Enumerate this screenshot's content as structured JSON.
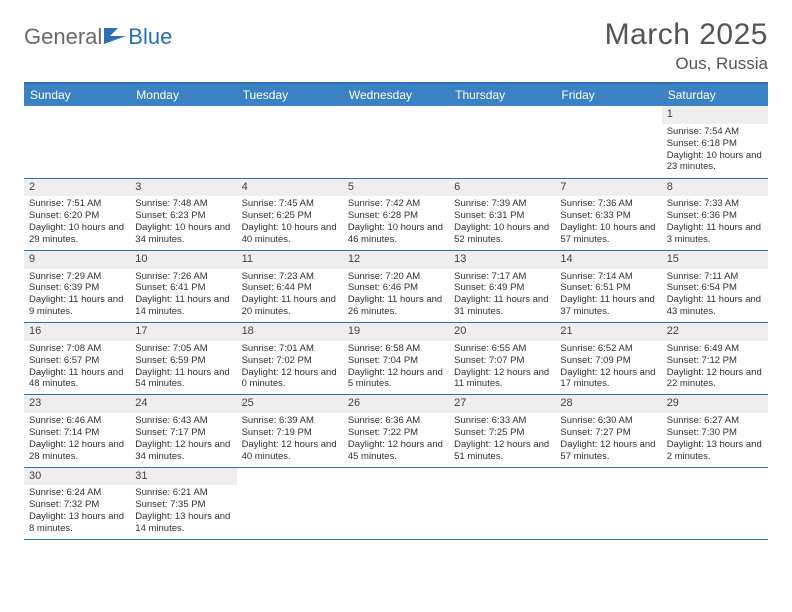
{
  "logo": {
    "general": "General",
    "blue": "Blue"
  },
  "title": "March 2025",
  "location": "Ous, Russia",
  "weekdays": [
    "Sunday",
    "Monday",
    "Tuesday",
    "Wednesday",
    "Thursday",
    "Friday",
    "Saturday"
  ],
  "colors": {
    "header_bg": "#3a82c4",
    "header_border": "#2a70b8",
    "cell_border": "#2a70b8",
    "daynum_bg": "#eeeeee",
    "text": "#333333",
    "title_text": "#555555"
  },
  "weeks": [
    [
      null,
      null,
      null,
      null,
      null,
      null,
      {
        "n": "1",
        "sr": "Sunrise: 7:54 AM",
        "ss": "Sunset: 6:18 PM",
        "dl": "Daylight: 10 hours and 23 minutes."
      }
    ],
    [
      {
        "n": "2",
        "sr": "Sunrise: 7:51 AM",
        "ss": "Sunset: 6:20 PM",
        "dl": "Daylight: 10 hours and 29 minutes."
      },
      {
        "n": "3",
        "sr": "Sunrise: 7:48 AM",
        "ss": "Sunset: 6:23 PM",
        "dl": "Daylight: 10 hours and 34 minutes."
      },
      {
        "n": "4",
        "sr": "Sunrise: 7:45 AM",
        "ss": "Sunset: 6:25 PM",
        "dl": "Daylight: 10 hours and 40 minutes."
      },
      {
        "n": "5",
        "sr": "Sunrise: 7:42 AM",
        "ss": "Sunset: 6:28 PM",
        "dl": "Daylight: 10 hours and 46 minutes."
      },
      {
        "n": "6",
        "sr": "Sunrise: 7:39 AM",
        "ss": "Sunset: 6:31 PM",
        "dl": "Daylight: 10 hours and 52 minutes."
      },
      {
        "n": "7",
        "sr": "Sunrise: 7:36 AM",
        "ss": "Sunset: 6:33 PM",
        "dl": "Daylight: 10 hours and 57 minutes."
      },
      {
        "n": "8",
        "sr": "Sunrise: 7:33 AM",
        "ss": "Sunset: 6:36 PM",
        "dl": "Daylight: 11 hours and 3 minutes."
      }
    ],
    [
      {
        "n": "9",
        "sr": "Sunrise: 7:29 AM",
        "ss": "Sunset: 6:39 PM",
        "dl": "Daylight: 11 hours and 9 minutes."
      },
      {
        "n": "10",
        "sr": "Sunrise: 7:26 AM",
        "ss": "Sunset: 6:41 PM",
        "dl": "Daylight: 11 hours and 14 minutes."
      },
      {
        "n": "11",
        "sr": "Sunrise: 7:23 AM",
        "ss": "Sunset: 6:44 PM",
        "dl": "Daylight: 11 hours and 20 minutes."
      },
      {
        "n": "12",
        "sr": "Sunrise: 7:20 AM",
        "ss": "Sunset: 6:46 PM",
        "dl": "Daylight: 11 hours and 26 minutes."
      },
      {
        "n": "13",
        "sr": "Sunrise: 7:17 AM",
        "ss": "Sunset: 6:49 PM",
        "dl": "Daylight: 11 hours and 31 minutes."
      },
      {
        "n": "14",
        "sr": "Sunrise: 7:14 AM",
        "ss": "Sunset: 6:51 PM",
        "dl": "Daylight: 11 hours and 37 minutes."
      },
      {
        "n": "15",
        "sr": "Sunrise: 7:11 AM",
        "ss": "Sunset: 6:54 PM",
        "dl": "Daylight: 11 hours and 43 minutes."
      }
    ],
    [
      {
        "n": "16",
        "sr": "Sunrise: 7:08 AM",
        "ss": "Sunset: 6:57 PM",
        "dl": "Daylight: 11 hours and 48 minutes."
      },
      {
        "n": "17",
        "sr": "Sunrise: 7:05 AM",
        "ss": "Sunset: 6:59 PM",
        "dl": "Daylight: 11 hours and 54 minutes."
      },
      {
        "n": "18",
        "sr": "Sunrise: 7:01 AM",
        "ss": "Sunset: 7:02 PM",
        "dl": "Daylight: 12 hours and 0 minutes."
      },
      {
        "n": "19",
        "sr": "Sunrise: 6:58 AM",
        "ss": "Sunset: 7:04 PM",
        "dl": "Daylight: 12 hours and 5 minutes."
      },
      {
        "n": "20",
        "sr": "Sunrise: 6:55 AM",
        "ss": "Sunset: 7:07 PM",
        "dl": "Daylight: 12 hours and 11 minutes."
      },
      {
        "n": "21",
        "sr": "Sunrise: 6:52 AM",
        "ss": "Sunset: 7:09 PM",
        "dl": "Daylight: 12 hours and 17 minutes."
      },
      {
        "n": "22",
        "sr": "Sunrise: 6:49 AM",
        "ss": "Sunset: 7:12 PM",
        "dl": "Daylight: 12 hours and 22 minutes."
      }
    ],
    [
      {
        "n": "23",
        "sr": "Sunrise: 6:46 AM",
        "ss": "Sunset: 7:14 PM",
        "dl": "Daylight: 12 hours and 28 minutes."
      },
      {
        "n": "24",
        "sr": "Sunrise: 6:43 AM",
        "ss": "Sunset: 7:17 PM",
        "dl": "Daylight: 12 hours and 34 minutes."
      },
      {
        "n": "25",
        "sr": "Sunrise: 6:39 AM",
        "ss": "Sunset: 7:19 PM",
        "dl": "Daylight: 12 hours and 40 minutes."
      },
      {
        "n": "26",
        "sr": "Sunrise: 6:36 AM",
        "ss": "Sunset: 7:22 PM",
        "dl": "Daylight: 12 hours and 45 minutes."
      },
      {
        "n": "27",
        "sr": "Sunrise: 6:33 AM",
        "ss": "Sunset: 7:25 PM",
        "dl": "Daylight: 12 hours and 51 minutes."
      },
      {
        "n": "28",
        "sr": "Sunrise: 6:30 AM",
        "ss": "Sunset: 7:27 PM",
        "dl": "Daylight: 12 hours and 57 minutes."
      },
      {
        "n": "29",
        "sr": "Sunrise: 6:27 AM",
        "ss": "Sunset: 7:30 PM",
        "dl": "Daylight: 13 hours and 2 minutes."
      }
    ],
    [
      {
        "n": "30",
        "sr": "Sunrise: 6:24 AM",
        "ss": "Sunset: 7:32 PM",
        "dl": "Daylight: 13 hours and 8 minutes."
      },
      {
        "n": "31",
        "sr": "Sunrise: 6:21 AM",
        "ss": "Sunset: 7:35 PM",
        "dl": "Daylight: 13 hours and 14 minutes."
      },
      null,
      null,
      null,
      null,
      null
    ]
  ]
}
